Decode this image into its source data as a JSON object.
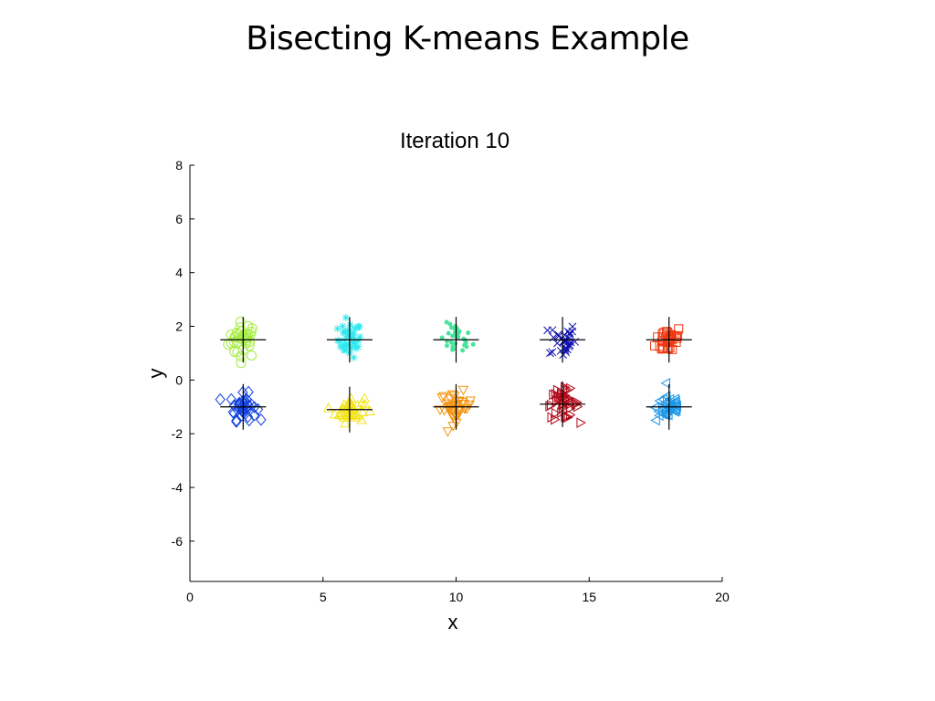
{
  "slide": {
    "title": "Bisecting K-means Example"
  },
  "chart_data": {
    "type": "scatter",
    "title": "Iteration 10",
    "xlabel": "x",
    "ylabel": "y",
    "xlim": [
      0,
      20
    ],
    "ylim": [
      -7.5,
      8
    ],
    "xticks": [
      0,
      5,
      10,
      15,
      20
    ],
    "yticks": [
      -6,
      -4,
      -2,
      0,
      2,
      4,
      6,
      8
    ],
    "grid": false,
    "clusters": [
      {
        "marker": "circle",
        "color": "#a6ec44",
        "centroid": [
          2,
          1.5
        ],
        "spread": [
          0.5,
          0.55
        ],
        "count": 34
      },
      {
        "marker": "asterisk",
        "color": "#2ee8f0",
        "centroid": [
          6,
          1.5
        ],
        "spread": [
          0.4,
          0.55
        ],
        "count": 40
      },
      {
        "marker": "dot",
        "color": "#48e49c",
        "centroid": [
          10,
          1.5
        ],
        "spread": [
          0.55,
          0.5
        ],
        "count": 30
      },
      {
        "marker": "x",
        "color": "#1010b0",
        "centroid": [
          14,
          1.5
        ],
        "spread": [
          0.45,
          0.55
        ],
        "count": 32
      },
      {
        "marker": "square",
        "color": "#f03810",
        "centroid": [
          18,
          1.5
        ],
        "spread": [
          0.45,
          0.45
        ],
        "count": 32
      },
      {
        "marker": "diamond",
        "color": "#1040e0",
        "centroid": [
          2,
          -1
        ],
        "spread": [
          0.45,
          0.4
        ],
        "count": 40
      },
      {
        "marker": "triangle-up",
        "color": "#f4e41c",
        "centroid": [
          6,
          -1.1
        ],
        "spread": [
          0.5,
          0.4
        ],
        "count": 40
      },
      {
        "marker": "triangle-down",
        "color": "#f49410",
        "centroid": [
          10,
          -1
        ],
        "spread": [
          0.55,
          0.45
        ],
        "count": 38
      },
      {
        "marker": "triangle-right",
        "color": "#b00818",
        "centroid": [
          14,
          -0.9
        ],
        "spread": [
          0.55,
          0.45
        ],
        "count": 42
      },
      {
        "marker": "triangle-left",
        "color": "#1c98e8",
        "centroid": [
          18,
          -1
        ],
        "spread": [
          0.45,
          0.45
        ],
        "count": 40
      }
    ],
    "centroid_marker": "plus",
    "centroid_color": "#000000"
  }
}
